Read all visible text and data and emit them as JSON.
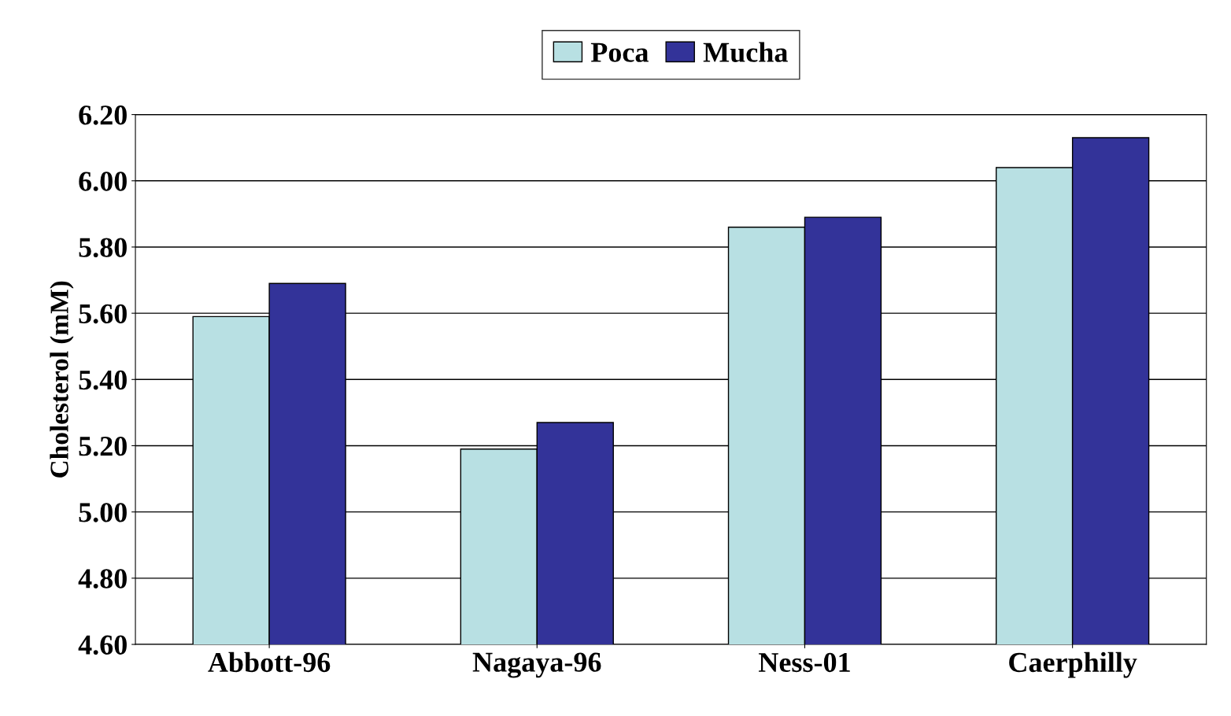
{
  "chart_data": {
    "type": "bar",
    "ylabel": "Cholesterol (mM)",
    "categories": [
      "Abbott-96",
      "Nagaya-96",
      "Ness-01",
      "Caerphilly"
    ],
    "series": [
      {
        "name": "Poca",
        "color": "#b8e0e3",
        "values": [
          5.59,
          5.19,
          5.86,
          6.04
        ]
      },
      {
        "name": "Mucha",
        "color": "#333399",
        "values": [
          5.69,
          5.27,
          5.89,
          6.13
        ]
      }
    ],
    "ylim": [
      4.6,
      6.2
    ],
    "yticks": [
      {
        "value": 4.6,
        "label": "4.60"
      },
      {
        "value": 4.8,
        "label": "4.80"
      },
      {
        "value": 5.0,
        "label": "5.00"
      },
      {
        "value": 5.2,
        "label": "5.20"
      },
      {
        "value": 5.4,
        "label": "5.40"
      },
      {
        "value": 5.6,
        "label": "5.60"
      },
      {
        "value": 5.8,
        "label": "5.80"
      },
      {
        "value": 6.0,
        "label": "6.00"
      },
      {
        "value": 6.2,
        "label": "6.20"
      }
    ],
    "grid": "y",
    "legend": "top"
  }
}
